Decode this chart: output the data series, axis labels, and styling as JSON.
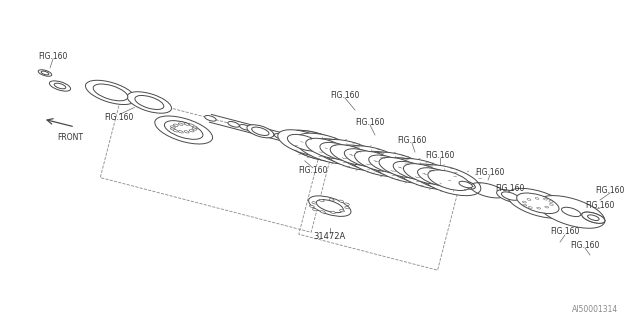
{
  "bg_color": "#ffffff",
  "line_color": "#4a4a4a",
  "label_color": "#333333",
  "watermark": "AI50001314",
  "label_31472A": "31472A",
  "label_FIG160": "FIG.160",
  "label_FRONT": "FRONT",
  "fig_size": [
    6.4,
    3.2
  ],
  "dpi": 100
}
